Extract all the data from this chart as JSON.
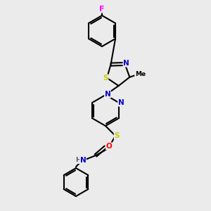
{
  "background_color": "#ebebeb",
  "bond_color": "#000000",
  "atom_colors": {
    "F": "#ff00ff",
    "S": "#cccc00",
    "N": "#0000cc",
    "O": "#ff0000",
    "C": "#000000",
    "H": "#555555"
  },
  "figsize": [
    3.0,
    3.0
  ],
  "dpi": 100
}
